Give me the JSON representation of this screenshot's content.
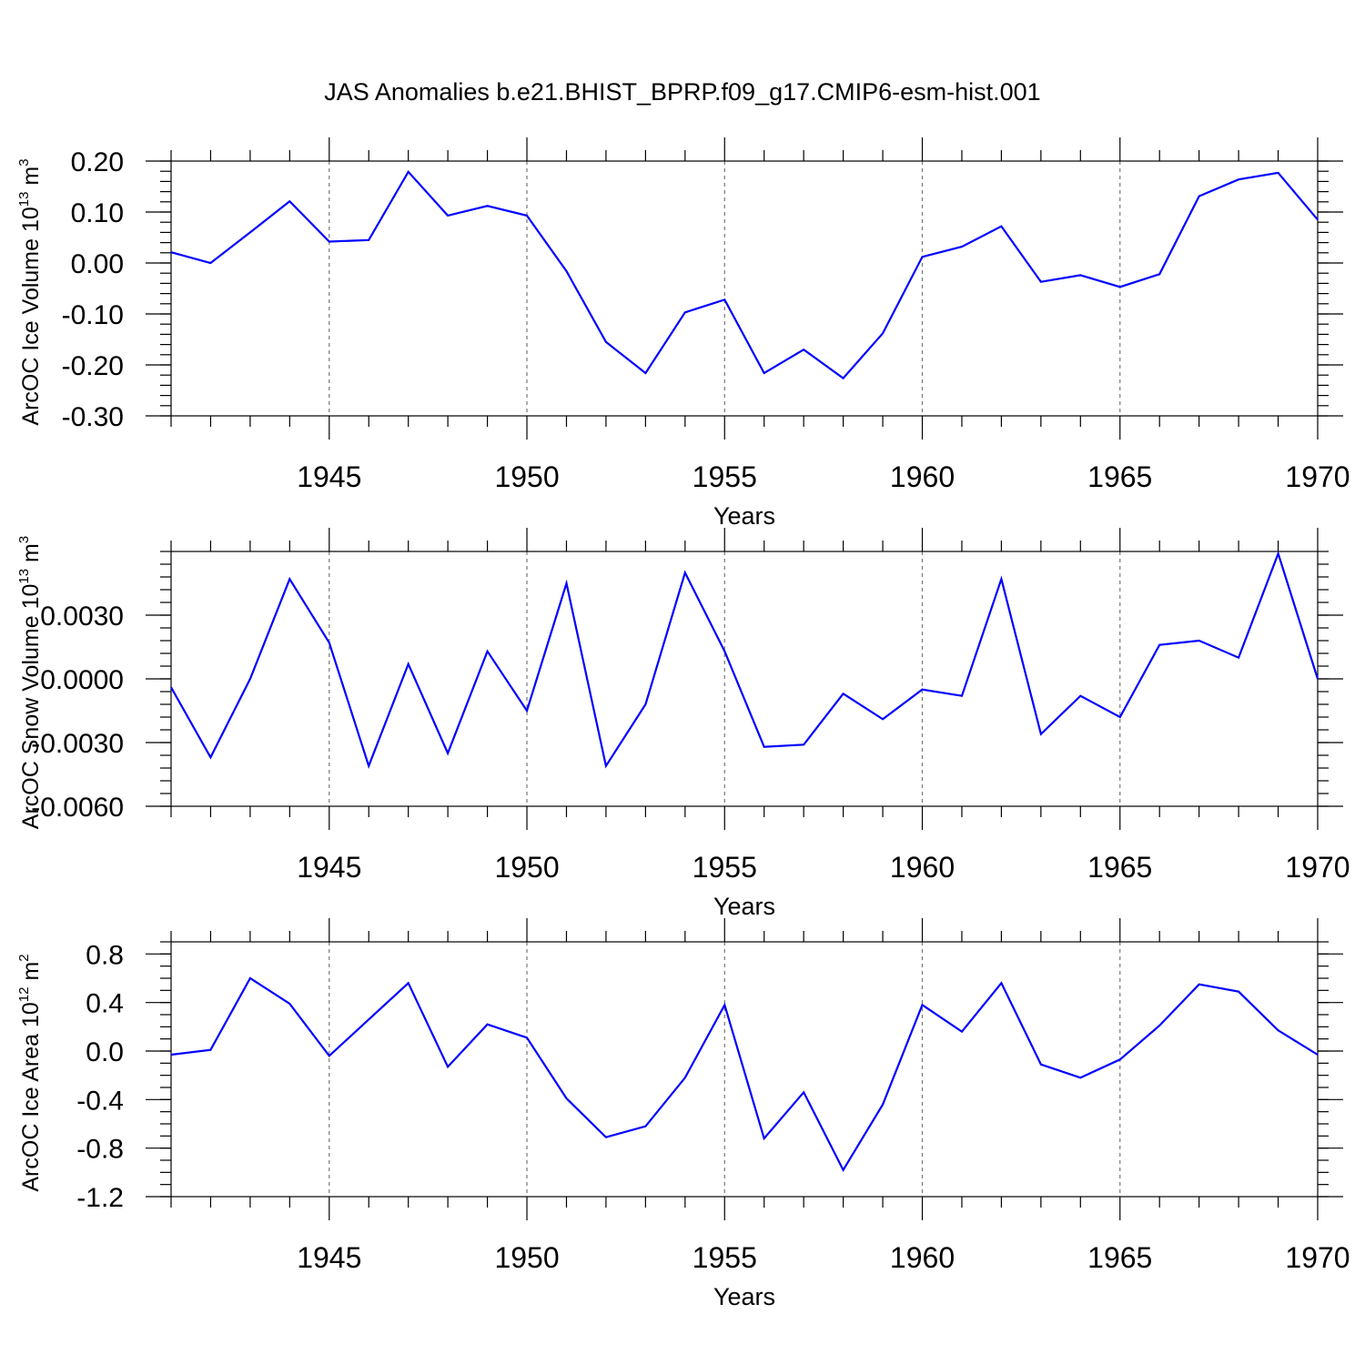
{
  "figure_title": "JAS Anomalies b.e21.BHIST_BPRP.f09_g17.CMIP6-esm-hist.001",
  "chart_data": [
    {
      "type": "line",
      "title": "JAS Anomalies b.e21.BHIST_BPRP.f09_g17.CMIP6-esm-hist.001",
      "xlabel": "Years",
      "ylabel": "ArcOC Ice Volume 10",
      "ylabel_exponent": "13",
      "ylabel_unit": " m",
      "ylabel_unit_exponent": "3",
      "xlim": [
        1941,
        1970
      ],
      "ylim": [
        -0.3,
        0.2
      ],
      "x_ticks": [
        1945,
        1950,
        1955,
        1960,
        1965,
        1970
      ],
      "y_ticks": [
        0.2,
        0.1,
        0.0,
        -0.1,
        -0.2,
        -0.3
      ],
      "y_tick_labels": [
        "0.20",
        "0.10",
        "0.00",
        "-0.10",
        "-0.20",
        "-0.30"
      ],
      "y_minor_step": 0.02,
      "series": [
        {
          "name": "ArcOC Ice Volume",
          "color": "#0000ff",
          "x": [
            1941,
            1942,
            1943,
            1944,
            1945,
            1946,
            1947,
            1948,
            1949,
            1950,
            1951,
            1952,
            1953,
            1954,
            1955,
            1956,
            1957,
            1958,
            1959,
            1960,
            1961,
            1962,
            1963,
            1964,
            1965,
            1966,
            1967,
            1968,
            1969,
            1970
          ],
          "values": [
            0.021,
            0.0,
            0.06,
            0.121,
            0.042,
            0.045,
            0.179,
            0.093,
            0.112,
            0.093,
            -0.016,
            -0.155,
            -0.216,
            -0.097,
            -0.072,
            -0.216,
            -0.17,
            -0.226,
            -0.138,
            0.012,
            0.032,
            0.072,
            -0.037,
            -0.024,
            -0.047,
            -0.022,
            0.131,
            0.164,
            0.177,
            0.085
          ]
        }
      ]
    },
    {
      "type": "line",
      "xlabel": "Years",
      "ylabel": "ArcOC Snow Volume 10",
      "ylabel_exponent": "13",
      "ylabel_unit": " m",
      "ylabel_unit_exponent": "3",
      "xlim": [
        1941,
        1970
      ],
      "ylim": [
        -0.006,
        0.006
      ],
      "x_ticks": [
        1945,
        1950,
        1955,
        1960,
        1965,
        1970
      ],
      "y_ticks": [
        0.003,
        0.0,
        -0.003,
        -0.006
      ],
      "y_tick_labels": [
        "0.0030",
        "0.0000",
        "-0.0030",
        "-0.0060"
      ],
      "y_minor_step": 0.0006,
      "series": [
        {
          "name": "ArcOC Snow Volume",
          "color": "#0000ff",
          "x": [
            1941,
            1942,
            1943,
            1944,
            1945,
            1946,
            1947,
            1948,
            1949,
            1950,
            1951,
            1952,
            1953,
            1954,
            1955,
            1956,
            1957,
            1958,
            1959,
            1960,
            1961,
            1962,
            1963,
            1964,
            1965,
            1966,
            1967,
            1968,
            1969,
            1970
          ],
          "values": [
            -0.0004,
            -0.0037,
            0.0,
            0.0047,
            0.0017,
            -0.0041,
            0.0007,
            -0.0035,
            0.0013,
            -0.0015,
            0.0045,
            -0.0041,
            -0.0012,
            0.005,
            0.0013,
            -0.0032,
            -0.0031,
            -0.0007,
            -0.0019,
            -0.0005,
            -0.0008,
            0.0047,
            -0.0026,
            -0.0008,
            -0.0018,
            0.0016,
            0.0018,
            0.001,
            0.0059,
            0.0
          ]
        }
      ]
    },
    {
      "type": "line",
      "xlabel": "Years",
      "ylabel": "ArcOC Ice Area 10",
      "ylabel_exponent": "12",
      "ylabel_unit": " m",
      "ylabel_unit_exponent": "2",
      "xlim": [
        1941,
        1970
      ],
      "ylim": [
        -1.2,
        0.9
      ],
      "x_ticks": [
        1945,
        1950,
        1955,
        1960,
        1965,
        1970
      ],
      "y_ticks": [
        0.8,
        0.4,
        0.0,
        -0.4,
        -0.8,
        -1.2
      ],
      "y_tick_labels": [
        "0.8",
        "0.4",
        "0.0",
        "-0.4",
        "-0.8",
        "-1.2"
      ],
      "y_minor_step": 0.1,
      "series": [
        {
          "name": "ArcOC Ice Area",
          "color": "#0000ff",
          "x": [
            1941,
            1942,
            1943,
            1944,
            1945,
            1946,
            1947,
            1948,
            1949,
            1950,
            1951,
            1952,
            1953,
            1954,
            1955,
            1956,
            1957,
            1958,
            1959,
            1960,
            1961,
            1962,
            1963,
            1964,
            1965,
            1966,
            1967,
            1968,
            1969,
            1970
          ],
          "values": [
            -0.03,
            0.01,
            0.6,
            0.39,
            -0.04,
            0.26,
            0.56,
            -0.13,
            0.22,
            0.11,
            -0.39,
            -0.71,
            -0.62,
            -0.22,
            0.38,
            -0.72,
            -0.34,
            -0.98,
            -0.44,
            0.38,
            0.16,
            0.56,
            -0.11,
            -0.22,
            -0.07,
            0.21,
            0.55,
            0.49,
            0.17,
            -0.03
          ]
        }
      ]
    }
  ]
}
